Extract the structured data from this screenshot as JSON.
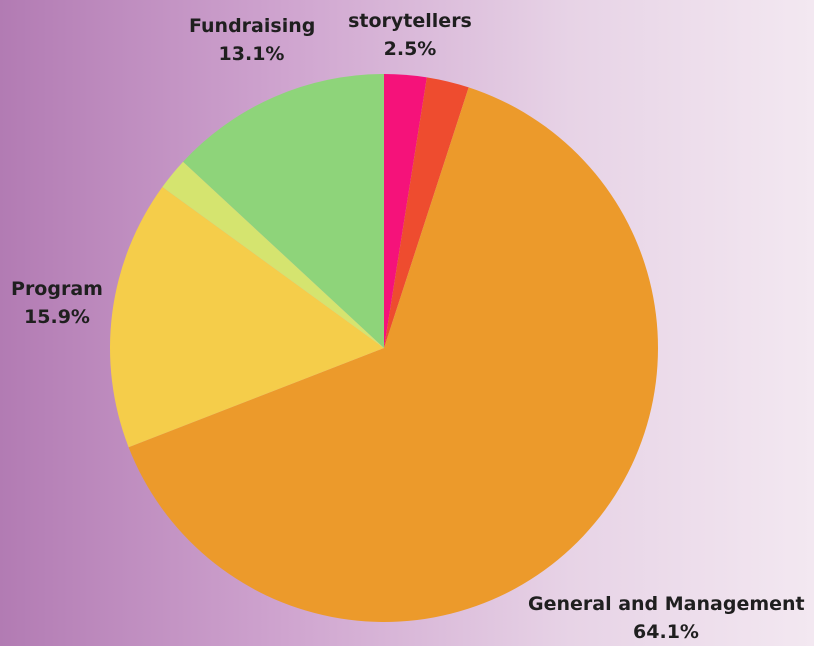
{
  "chart_data": {
    "type": "pie",
    "title": "",
    "slices": [
      {
        "label": "storytellers",
        "value_label": "2.5%",
        "value": 2.5,
        "color": "#f5127a"
      },
      {
        "label": "",
        "value_label": "",
        "value": 2.5,
        "color": "#ee4c2f"
      },
      {
        "label": "General and Management",
        "value_label": "64.1%",
        "value": 64.1,
        "color": "#ec9a2b"
      },
      {
        "label": "Program",
        "value_label": "15.9%",
        "value": 15.9,
        "color": "#f5cd4a"
      },
      {
        "label": "",
        "value_label": "",
        "value": 1.9,
        "color": "#d5e46f"
      },
      {
        "label": "Fundraising",
        "value_label": "13.1%",
        "value": 13.1,
        "color": "#8ed47a"
      }
    ]
  }
}
